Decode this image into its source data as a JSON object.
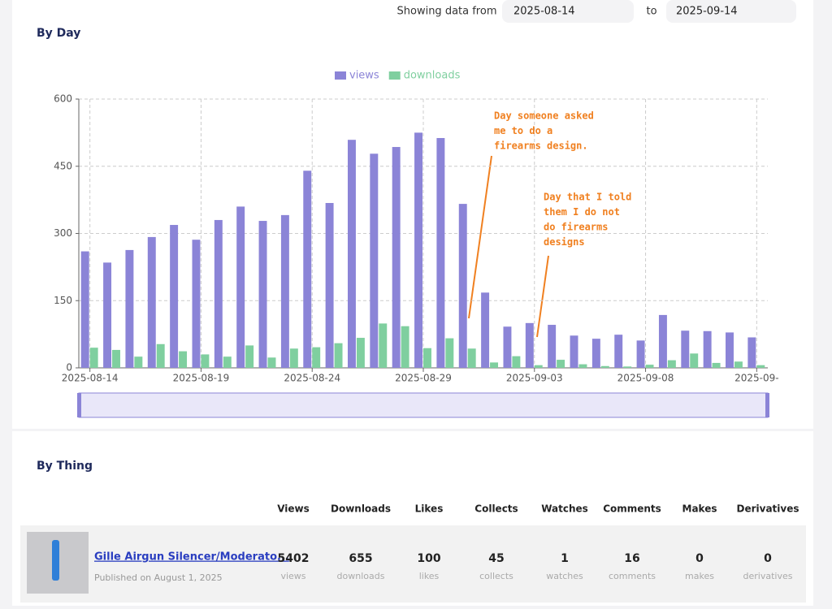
{
  "header": {
    "showing_label": "Showing data from",
    "from": "2025-08-14",
    "to_label": "to",
    "to": "2025-09-14"
  },
  "by_day": {
    "title": "By Day"
  },
  "chart_data": {
    "type": "bar",
    "categories": [
      "2025-08-14",
      null,
      null,
      null,
      null,
      "2025-08-19",
      null,
      null,
      null,
      null,
      "2025-08-24",
      null,
      null,
      null,
      null,
      "2025-08-29",
      null,
      null,
      null,
      null,
      "2025-09-03",
      null,
      null,
      null,
      null,
      "2025-09-08",
      null,
      null,
      null,
      null,
      "2025-09-"
    ],
    "series": [
      {
        "name": "views",
        "color": "#8b84d7",
        "values": [
          260,
          235,
          263,
          292,
          319,
          286,
          330,
          360,
          328,
          341,
          440,
          368,
          509,
          478,
          493,
          525,
          513,
          366,
          168,
          92,
          100,
          96,
          72,
          65,
          74,
          61,
          118,
          83,
          82,
          79,
          68
        ]
      },
      {
        "name": "downloads",
        "color": "#7fcf9f",
        "values": [
          45,
          40,
          25,
          53,
          37,
          30,
          25,
          50,
          23,
          43,
          46,
          55,
          67,
          99,
          93,
          44,
          66,
          43,
          12,
          26,
          6,
          18,
          8,
          4,
          3,
          7,
          17,
          32,
          11,
          14,
          6
        ]
      }
    ],
    "ylim": [
      0,
      600
    ],
    "yticks": [
      0,
      150,
      300,
      450,
      600
    ],
    "grid": true,
    "legend": "top",
    "annotations": [
      {
        "lines": [
          "Day someone asked",
          "me to do a",
          "firearms design."
        ]
      },
      {
        "lines": [
          "Day that I told",
          "them I do not",
          "do firearms",
          "designs"
        ]
      }
    ]
  },
  "by_thing": {
    "title": "By Thing",
    "columns": [
      "Views",
      "Downloads",
      "Likes",
      "Collects",
      "Watches",
      "Comments",
      "Makes",
      "Derivatives"
    ],
    "rows": [
      {
        "name": "Gille Airgun Silencer/Moderato...",
        "published": "Published on August 1, 2025",
        "stats": [
          {
            "value": 5402,
            "label": "views"
          },
          {
            "value": 655,
            "label": "downloads"
          },
          {
            "value": 100,
            "label": "likes"
          },
          {
            "value": 45,
            "label": "collects"
          },
          {
            "value": 1,
            "label": "watches"
          },
          {
            "value": 16,
            "label": "comments"
          },
          {
            "value": 0,
            "label": "makes"
          },
          {
            "value": 0,
            "label": "derivatives"
          }
        ]
      }
    ]
  }
}
